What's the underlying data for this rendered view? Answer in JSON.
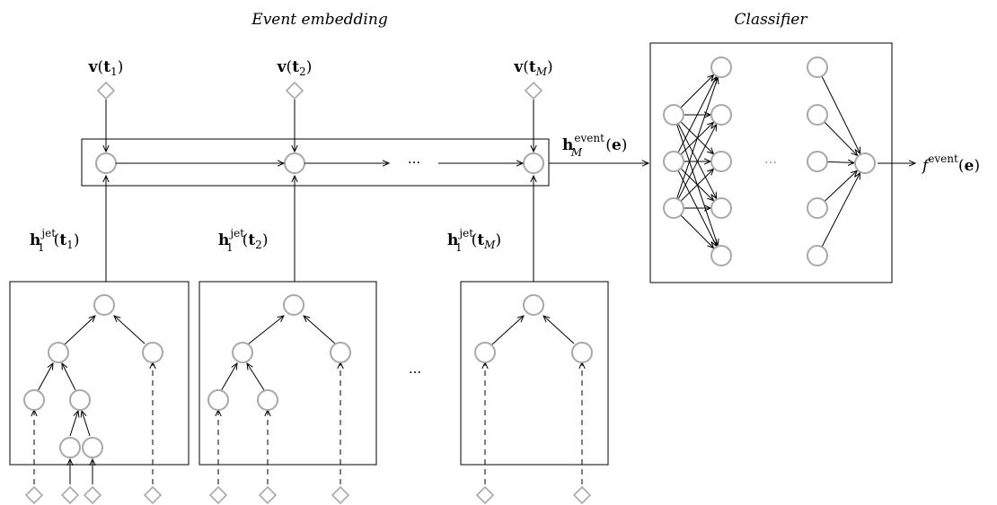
{
  "headings": {
    "event_embedding": "Event embedding",
    "classifier": "Classifier"
  },
  "symbols": {
    "v": "v",
    "t": "t",
    "h": "h",
    "e": "e",
    "f": "f",
    "open": "(",
    "close": ")",
    "one": "1",
    "two": "2",
    "M": "M",
    "jet": "jet",
    "event": "event"
  },
  "ellipsis": "···",
  "colors": {
    "node_stroke": "#a8a8a8",
    "line": "#000000"
  }
}
